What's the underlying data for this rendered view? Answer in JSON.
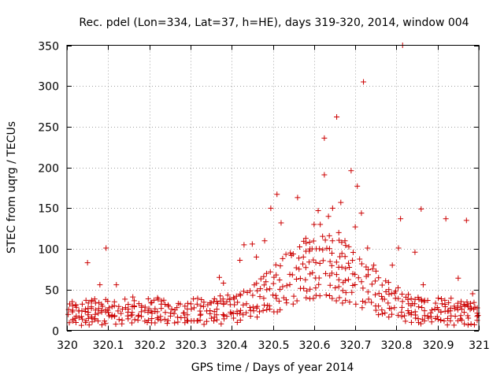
{
  "chart_data": {
    "type": "scatter",
    "title": "Rec. pdel (Lon=334, Lat=37, h=HE), days 319-320, 2014, window 004",
    "xlabel": "GPS time / Days of year 2014",
    "ylabel": "STEC from uqrg / TECUs",
    "xlim": [
      320,
      321
    ],
    "ylim": [
      0,
      350
    ],
    "xticks": [
      320,
      320.1,
      320.2,
      320.3,
      320.4,
      320.5,
      320.6,
      320.7,
      320.8,
      320.9,
      321
    ],
    "xtick_labels": [
      "320",
      "320.1",
      "320.2",
      "320.3",
      "320.4",
      "320.5",
      "320.6",
      "320.7",
      "320.8",
      "320.9",
      "321"
    ],
    "yticks": [
      0,
      50,
      100,
      150,
      200,
      250,
      300,
      350
    ],
    "ytick_labels": [
      "0",
      "50",
      "100",
      "150",
      "200",
      "250",
      "300",
      "350"
    ],
    "grid": true,
    "marker": "plus",
    "color": "#cc0000",
    "outliers": [
      [
        320.05,
        83
      ],
      [
        320.06,
        37
      ],
      [
        320.08,
        56
      ],
      [
        320.095,
        101
      ],
      [
        320.12,
        56
      ],
      [
        320.16,
        41
      ],
      [
        320.22,
        40
      ],
      [
        320.37,
        65
      ],
      [
        320.38,
        58
      ],
      [
        320.42,
        86
      ],
      [
        320.43,
        105
      ],
      [
        320.45,
        106
      ],
      [
        320.46,
        90
      ],
      [
        320.48,
        110
      ],
      [
        320.495,
        150
      ],
      [
        320.51,
        167
      ],
      [
        320.52,
        132
      ],
      [
        320.545,
        92
      ],
      [
        320.56,
        163
      ],
      [
        320.58,
        113
      ],
      [
        320.59,
        100
      ],
      [
        320.6,
        130
      ],
      [
        320.61,
        147
      ],
      [
        320.615,
        130
      ],
      [
        320.625,
        236
      ],
      [
        320.625,
        191
      ],
      [
        320.635,
        140
      ],
      [
        320.645,
        150
      ],
      [
        320.655,
        262
      ],
      [
        320.66,
        120
      ],
      [
        320.665,
        157
      ],
      [
        320.675,
        110
      ],
      [
        320.69,
        196
      ],
      [
        320.7,
        127
      ],
      [
        320.705,
        177
      ],
      [
        320.715,
        144
      ],
      [
        320.72,
        305
      ],
      [
        320.73,
        101
      ],
      [
        320.745,
        80
      ],
      [
        320.79,
        80
      ],
      [
        320.805,
        101
      ],
      [
        320.81,
        137
      ],
      [
        320.815,
        350
      ],
      [
        320.845,
        96
      ],
      [
        320.86,
        149
      ],
      [
        320.865,
        56
      ],
      [
        320.92,
        137
      ],
      [
        320.95,
        64
      ],
      [
        320.97,
        135
      ],
      [
        320.985,
        45
      ]
    ],
    "density_model": {
      "description": "dense satellite-arc bands of STEC values following a daytime bulge",
      "baseline_levels": [
        10,
        15,
        20,
        25,
        30,
        35
      ],
      "day_peak_center": 320.62,
      "day_peak_width": 0.14,
      "day_peak_amplitudes": [
        30,
        38,
        48,
        60,
        70,
        80
      ],
      "x_step": 0.008
    }
  }
}
